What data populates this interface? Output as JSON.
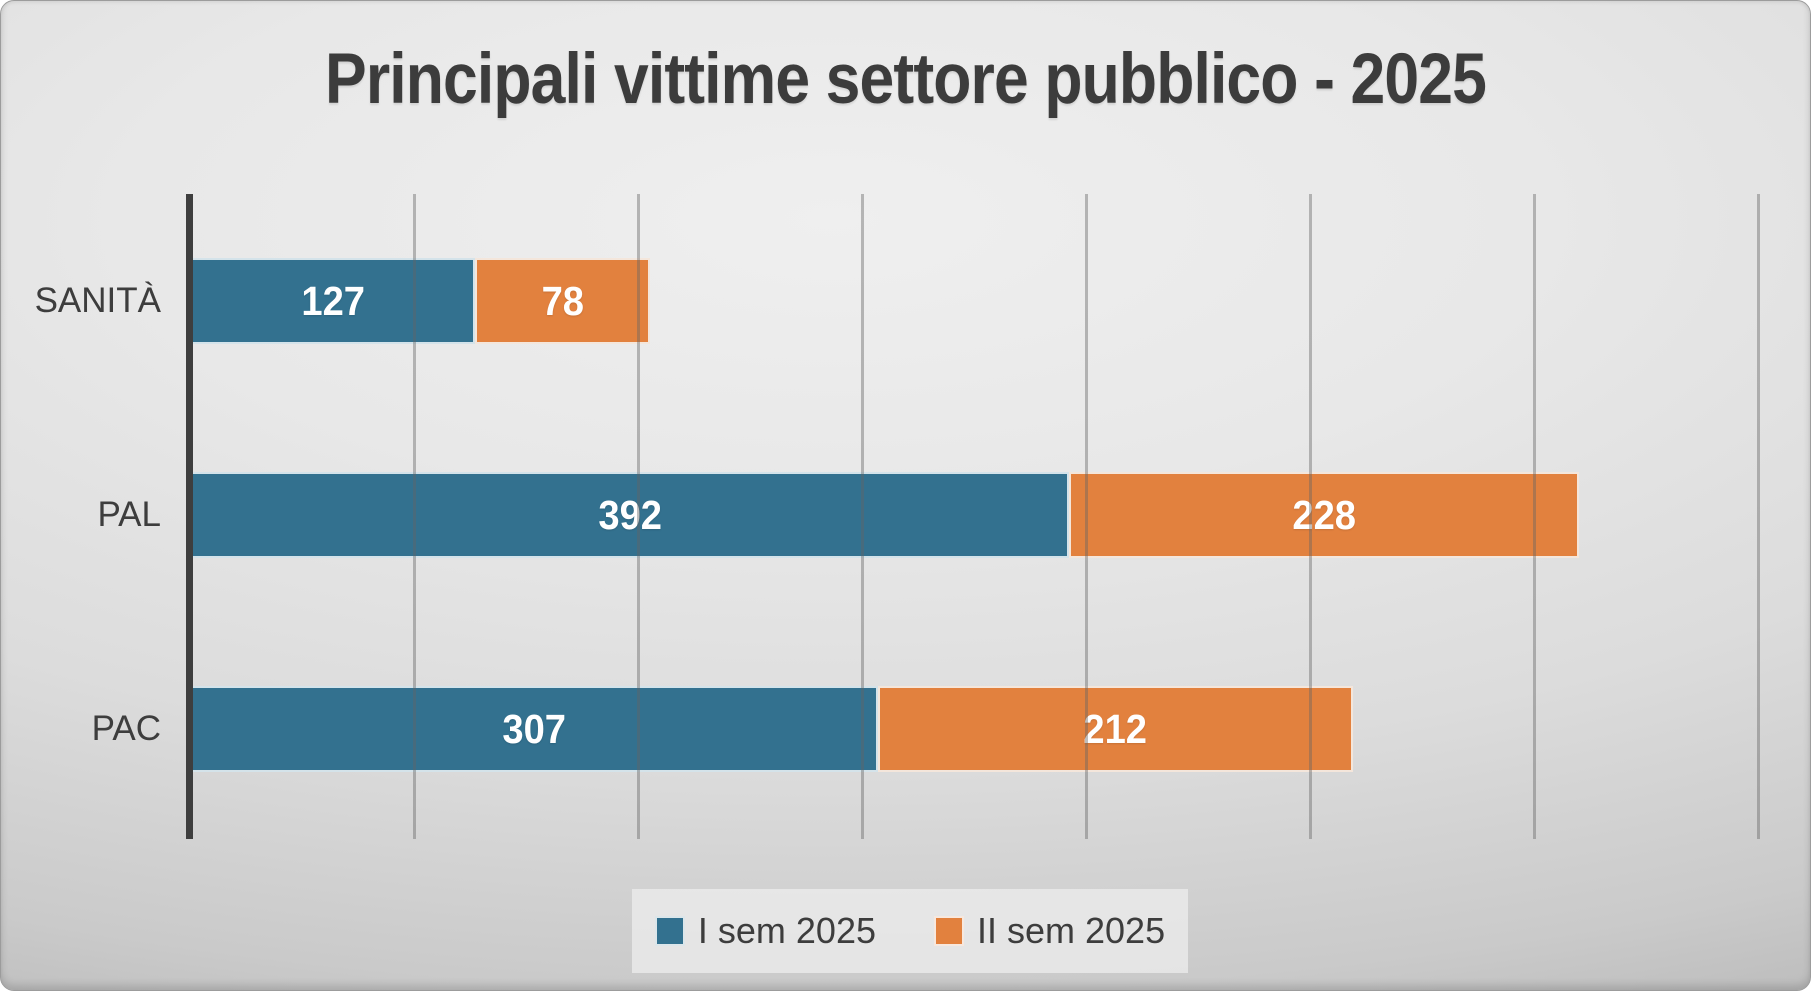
{
  "title": "Principali vittime settore pubblico - 2025",
  "colors": {
    "series1": "#33718f",
    "series2": "#e2813e",
    "title_text": "#3c3c3c",
    "category_text": "#3d3d3d",
    "value_text": "#ffffff",
    "axis_line": "#3e3e3e",
    "gridline": "#9a9a9a",
    "background_light": "#efefef",
    "background_dark": "#b3b3b3",
    "legend_box": "#eeeeee"
  },
  "legend": {
    "position": "bottom",
    "items": [
      {
        "label": "I sem 2025",
        "color": "#33718f"
      },
      {
        "label": "II sem 2025",
        "color": "#e2813e"
      }
    ]
  },
  "chart_data": {
    "type": "bar",
    "orientation": "horizontal",
    "stacked": true,
    "title": "Principali vittime settore pubblico - 2025",
    "categories": [
      "SANITÀ",
      "PAL",
      "PAC"
    ],
    "series": [
      {
        "name": "I sem 2025",
        "color": "#33718f",
        "values": [
          127,
          392,
          307
        ]
      },
      {
        "name": "II sem 2025",
        "color": "#e2813e",
        "values": [
          78,
          228,
          212
        ]
      }
    ],
    "totals": [
      205,
      620,
      519
    ],
    "xlabel": "",
    "ylabel": "",
    "xlim": [
      0,
      724
    ],
    "gridline_interval": 100,
    "grid": "on",
    "x_tick_labels_visible": false,
    "value_labels": "inside-center-white-bold",
    "legend_position": "bottom-center"
  }
}
